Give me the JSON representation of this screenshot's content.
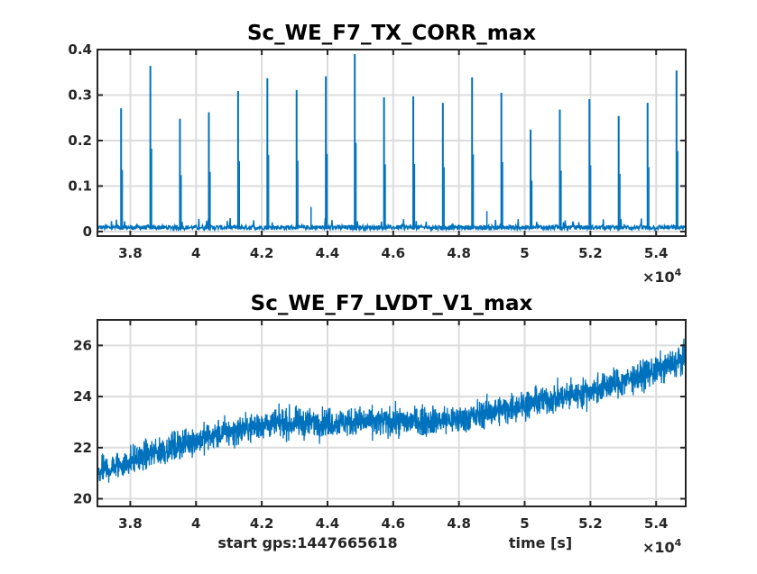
{
  "chart_data": [
    {
      "type": "line",
      "title": "Sc_WE_F7_TX_CORR_max",
      "xlabel": "",
      "ylabel": "",
      "xlim": [
        37000,
        54900
      ],
      "ylim": [
        -0.01,
        0.4
      ],
      "x_ticks": [
        38000,
        40000,
        42000,
        44000,
        46000,
        48000,
        50000,
        52000,
        54000
      ],
      "x_tick_labels": [
        "3.8",
        "4",
        "4.2",
        "4.4",
        "4.6",
        "4.8",
        "5",
        "5.2",
        "5.4"
      ],
      "x_exponent_label": "×10",
      "x_exponent": "4",
      "y_ticks": [
        0,
        0.1,
        0.2,
        0.3,
        0.4
      ],
      "y_tick_labels": [
        "0",
        "0.1",
        "0.2",
        "0.3",
        "0.4"
      ],
      "grid": true,
      "color": "#0072BD",
      "baseline_range": [
        0,
        0.02
      ],
      "spikes": [
        {
          "x": 37720,
          "y": 0.271
        },
        {
          "x": 38610,
          "y": 0.364
        },
        {
          "x": 39510,
          "y": 0.248
        },
        {
          "x": 40390,
          "y": 0.262
        },
        {
          "x": 41280,
          "y": 0.309
        },
        {
          "x": 42170,
          "y": 0.337
        },
        {
          "x": 43060,
          "y": 0.311
        },
        {
          "x": 43950,
          "y": 0.341
        },
        {
          "x": 44830,
          "y": 0.39
        },
        {
          "x": 45720,
          "y": 0.295
        },
        {
          "x": 46610,
          "y": 0.297
        },
        {
          "x": 47510,
          "y": 0.283
        },
        {
          "x": 48400,
          "y": 0.339
        },
        {
          "x": 49290,
          "y": 0.305
        },
        {
          "x": 50180,
          "y": 0.224
        },
        {
          "x": 51070,
          "y": 0.268
        },
        {
          "x": 51970,
          "y": 0.291
        },
        {
          "x": 52860,
          "y": 0.254
        },
        {
          "x": 53740,
          "y": 0.283
        },
        {
          "x": 54620,
          "y": 0.354
        }
      ],
      "minor_peaks": [
        {
          "x": 43500,
          "y": 0.054
        },
        {
          "x": 48850,
          "y": 0.045
        }
      ]
    },
    {
      "type": "line",
      "title": "Sc_WE_F7_LVDT_V1_max",
      "xlabel": "time [s]",
      "annotation": "start gps:1447665618",
      "ylabel": "",
      "xlim": [
        37000,
        54900
      ],
      "ylim": [
        19.7,
        27
      ],
      "x_ticks": [
        38000,
        40000,
        42000,
        44000,
        46000,
        48000,
        50000,
        52000,
        54000
      ],
      "x_tick_labels": [
        "3.8",
        "4",
        "4.2",
        "4.4",
        "4.6",
        "4.8",
        "5",
        "5.2",
        "5.4"
      ],
      "x_exponent_label": "×10",
      "x_exponent": "4",
      "y_ticks": [
        20,
        22,
        24,
        26
      ],
      "y_tick_labels": [
        "20",
        "22",
        "24",
        "26"
      ],
      "grid": true,
      "color": "#0072BD",
      "trend": {
        "x": [
          37000,
          38000,
          40000,
          42000,
          44000,
          46000,
          48000,
          50000,
          52000,
          54000,
          54900
        ],
        "y": [
          21.0,
          21.5,
          22.3,
          22.9,
          23.0,
          23.0,
          23.1,
          23.7,
          24.2,
          25.0,
          25.5
        ]
      },
      "noise_amplitude": 1.0
    }
  ]
}
